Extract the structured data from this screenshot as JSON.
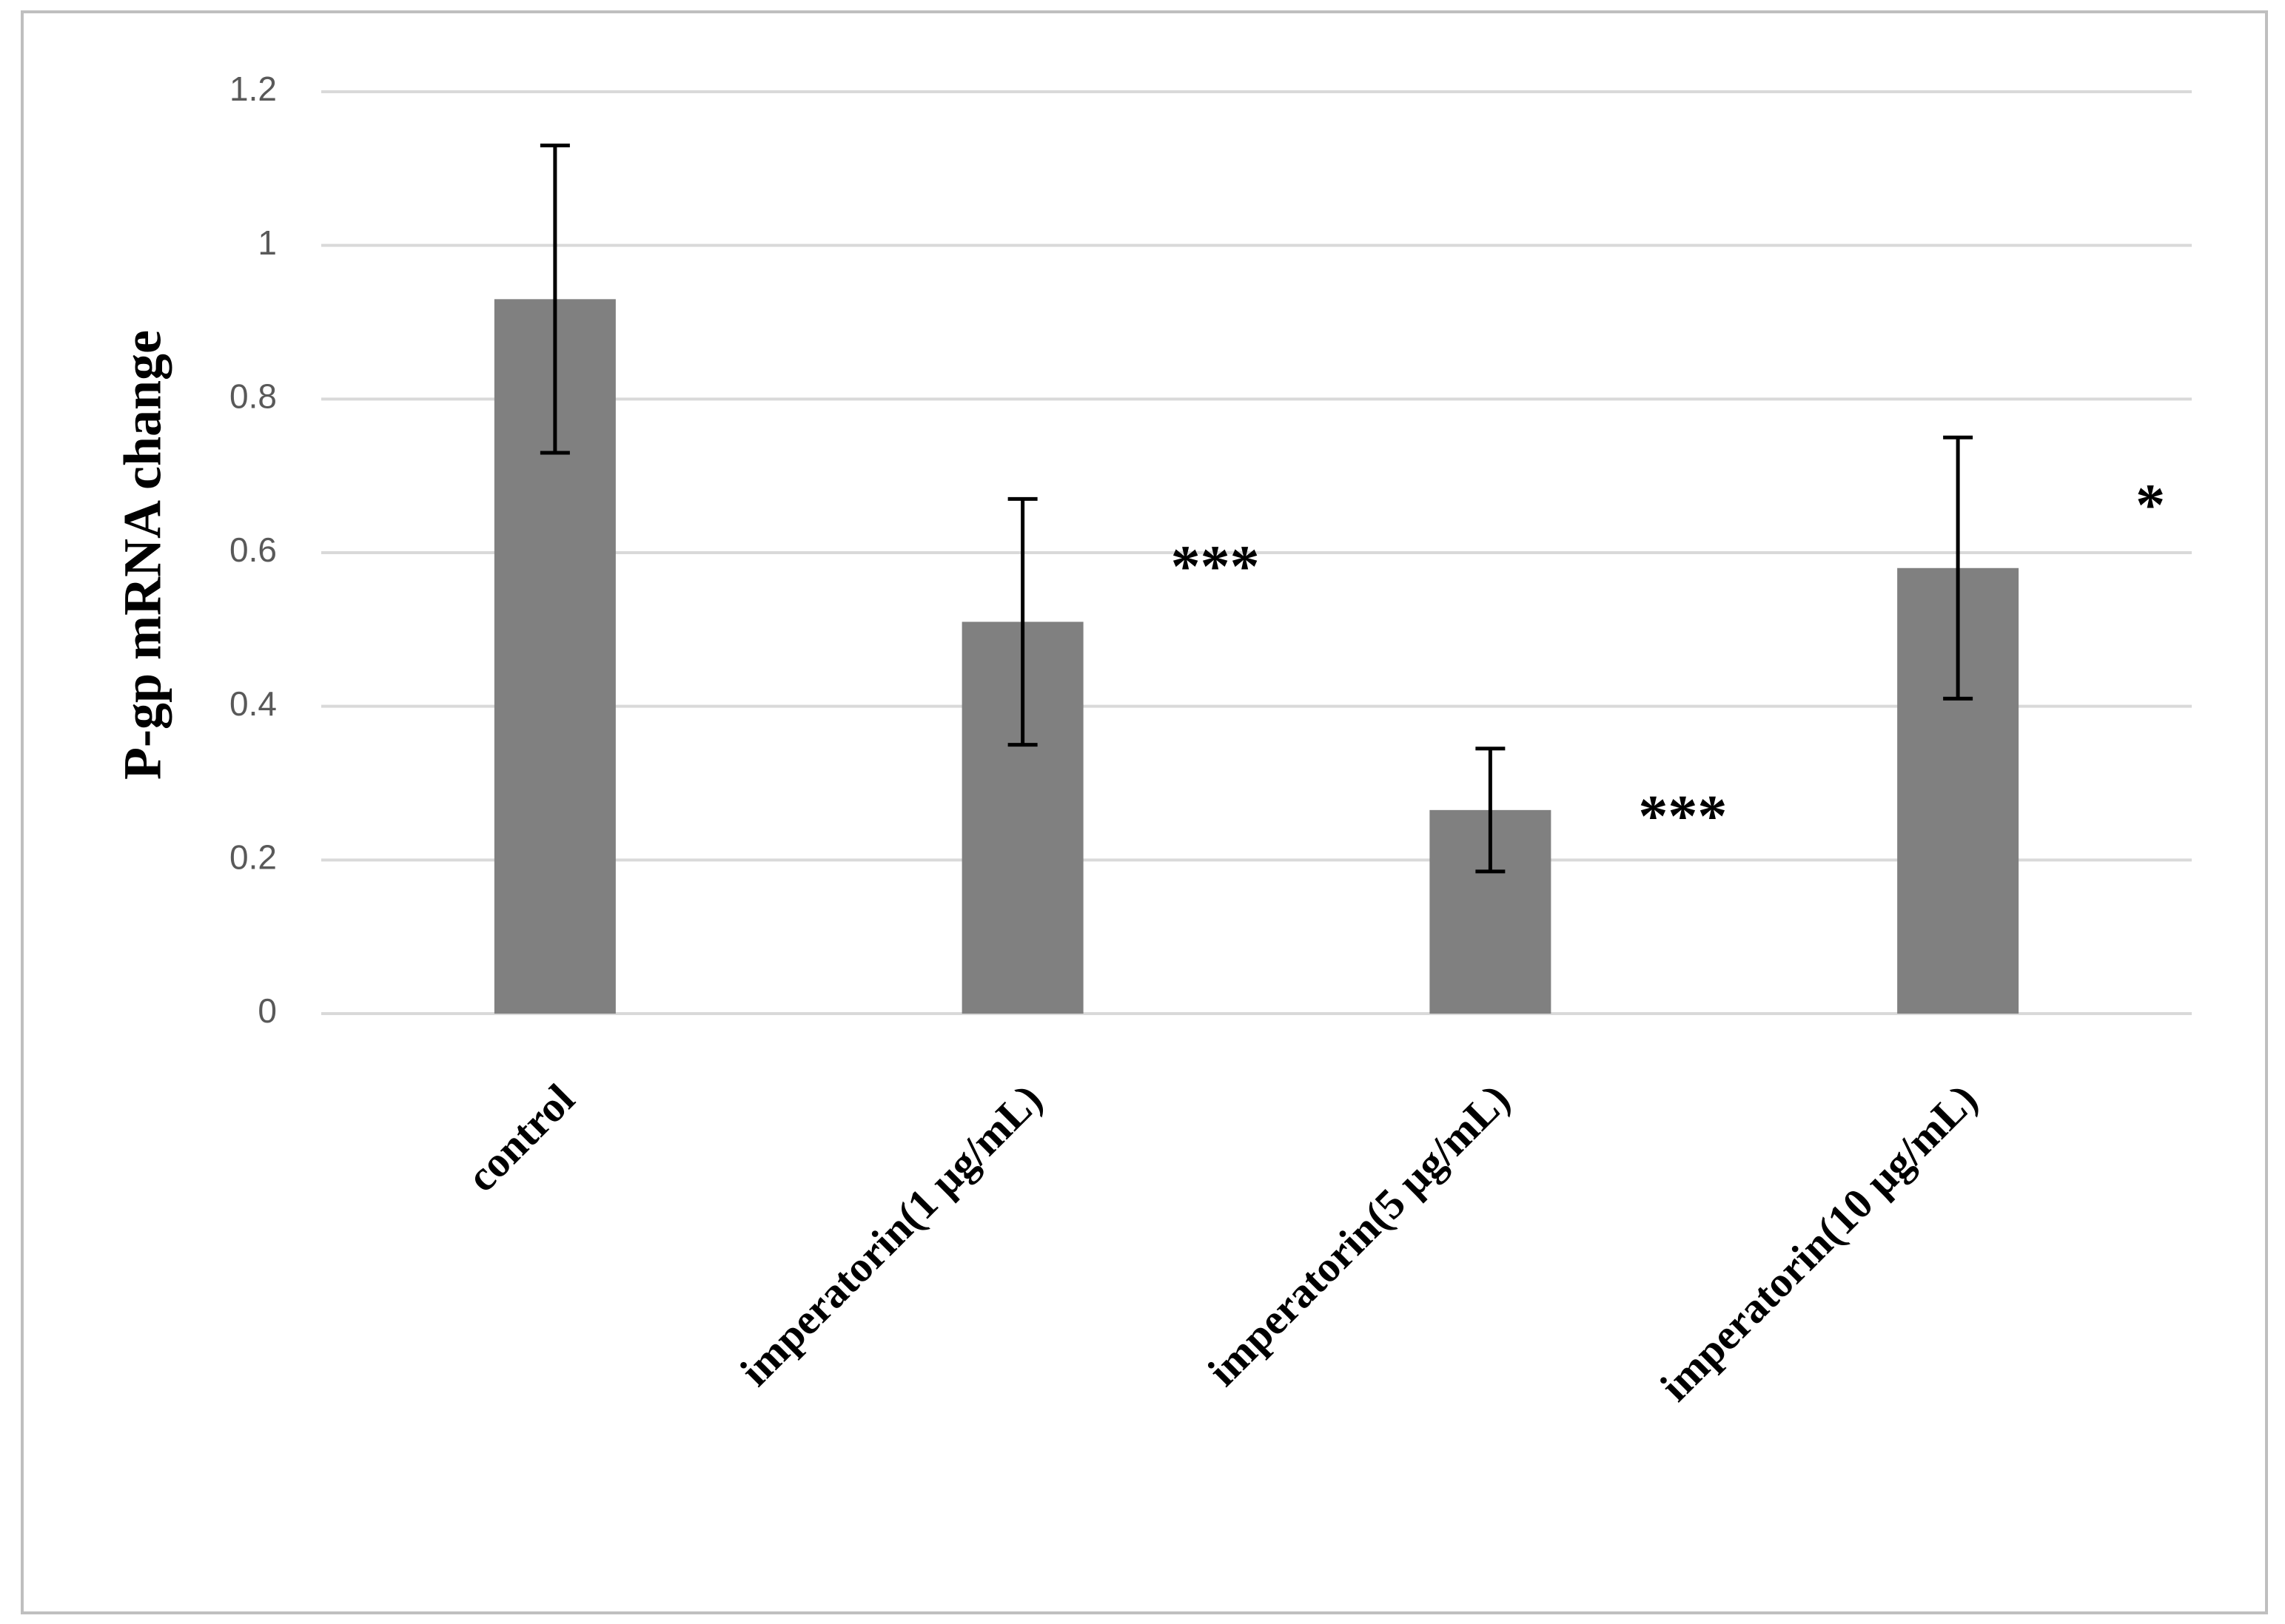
{
  "chart_data": {
    "type": "bar",
    "y_label": "P-gp mRNA change",
    "categories": [
      "control",
      "imperatorin(1 µg/mL)",
      "imperatorin(5 µg/mL)",
      "imperatorin(10 µg/mL)"
    ],
    "values": [
      0.93,
      0.51,
      0.265,
      0.58
    ],
    "errors": [
      0.2,
      0.16,
      0.08,
      0.17
    ],
    "significance": [
      null,
      "***",
      "***",
      "*"
    ],
    "color": "#808080",
    "ylim": [
      0,
      1.2
    ],
    "yticks": [
      0,
      0.2,
      0.4,
      0.6,
      0.8,
      1,
      1.2
    ],
    "grid": true
  }
}
